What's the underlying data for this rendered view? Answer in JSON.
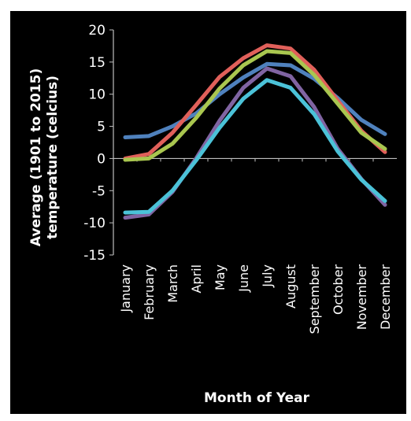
{
  "chart_data": {
    "type": "line",
    "xlabel": "Month of Year",
    "ylabel_line1": "Average (1901 to 2015)",
    "ylabel_line2": "temperature (celcius)",
    "ylim": [
      -15,
      20
    ],
    "yticks": [
      -15,
      -10,
      -5,
      0,
      5,
      10,
      15,
      20
    ],
    "grid": false,
    "categories": [
      "January",
      "February",
      "March",
      "April",
      "May",
      "June",
      "July",
      "August",
      "September",
      "October",
      "November",
      "December"
    ],
    "series": [
      {
        "color": "#4f81bd",
        "values": [
          3.3,
          3.5,
          5.0,
          7.0,
          10.0,
          12.6,
          14.7,
          14.5,
          12.4,
          9.4,
          6.0,
          3.8
        ]
      },
      {
        "color": "#e0605a",
        "values": [
          0.0,
          0.7,
          4.0,
          8.3,
          12.7,
          15.6,
          17.6,
          17.1,
          13.8,
          9.0,
          4.3,
          1.0
        ]
      },
      {
        "color": "#a9c64f",
        "values": [
          -0.2,
          0.0,
          2.3,
          6.3,
          10.9,
          14.5,
          16.7,
          16.4,
          13.0,
          8.5,
          4.0,
          1.5
        ]
      },
      {
        "color": "#8064a2",
        "values": [
          -9.2,
          -8.7,
          -5.2,
          0.0,
          5.9,
          11.0,
          14.0,
          12.8,
          8.0,
          1.5,
          -3.2,
          -7.2
        ]
      },
      {
        "color": "#4bc2d8",
        "values": [
          -8.4,
          -8.3,
          -5.0,
          -0.3,
          4.8,
          9.3,
          12.2,
          11.0,
          6.9,
          1.1,
          -3.3,
          -6.6
        ]
      }
    ]
  }
}
